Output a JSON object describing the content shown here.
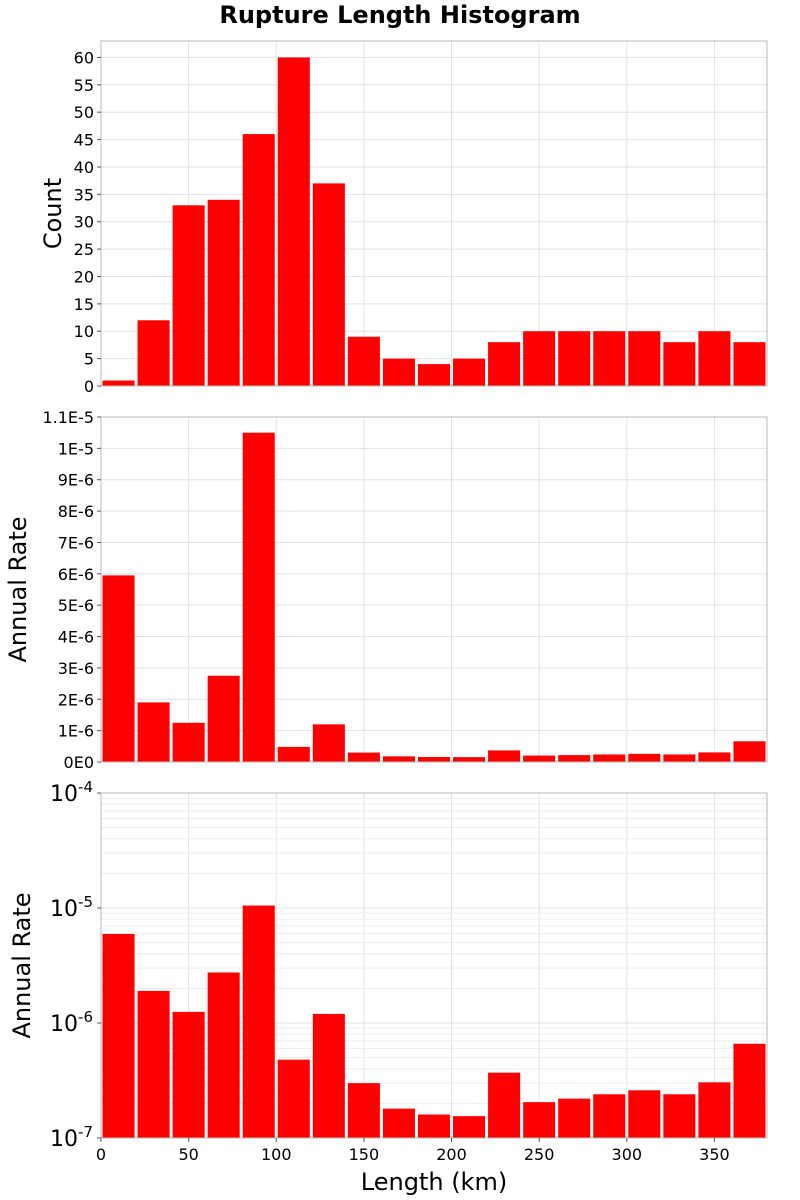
{
  "title": "Rupture Length Histogram",
  "chart_data": {
    "type": "bar",
    "title": "Rupture Length Histogram",
    "xlabel": "Length (km)",
    "xlim": [
      0,
      380
    ],
    "x_ticks": [
      "0",
      "50",
      "100",
      "150",
      "200",
      "250",
      "300",
      "350"
    ],
    "bin_width": 20,
    "bin_centers": [
      10,
      30,
      50,
      70,
      90,
      110,
      130,
      150,
      170,
      190,
      210,
      230,
      250,
      270,
      290,
      310,
      330,
      350,
      370
    ],
    "panels": [
      {
        "ylabel": "Count",
        "scale": "linear",
        "ylim": [
          0,
          63
        ],
        "y_ticks": [
          "0",
          "5",
          "10",
          "15",
          "20",
          "25",
          "30",
          "35",
          "40",
          "45",
          "50",
          "55",
          "60"
        ],
        "values": [
          1,
          12,
          33,
          34,
          46,
          60,
          37,
          9,
          5,
          4,
          5,
          8,
          10,
          10,
          10,
          10,
          8,
          10,
          8
        ]
      },
      {
        "ylabel": "Annual Rate",
        "scale": "linear",
        "ylim": [
          0,
          1.1e-05
        ],
        "y_ticks": [
          "0E0",
          "1E-6",
          "2E-6",
          "3E-6",
          "4E-6",
          "5E-6",
          "6E-6",
          "7E-6",
          "8E-6",
          "9E-6",
          "1E-5",
          "1.1E-5"
        ],
        "values": [
          5.95e-06,
          1.9e-06,
          1.25e-06,
          2.75e-06,
          1.05e-05,
          4.8e-07,
          1.2e-06,
          3e-07,
          1.8e-07,
          1.6e-07,
          1.55e-07,
          3.7e-07,
          2.05e-07,
          2.2e-07,
          2.4e-07,
          2.6e-07,
          2.4e-07,
          3.05e-07,
          6.6e-07
        ]
      },
      {
        "ylabel": "Annual Rate",
        "scale": "log",
        "ylim": [
          1e-07,
          0.0001
        ],
        "y_ticks": [
          {
            "base": "10",
            "exp": "-4"
          },
          {
            "base": "10",
            "exp": "-5"
          },
          {
            "base": "10",
            "exp": "-6"
          },
          {
            "base": "10",
            "exp": "-7"
          }
        ],
        "values": [
          5.95e-06,
          1.9e-06,
          1.25e-06,
          2.75e-06,
          1.05e-05,
          4.8e-07,
          1.2e-06,
          3e-07,
          1.8e-07,
          1.6e-07,
          1.55e-07,
          3.7e-07,
          2.05e-07,
          2.2e-07,
          2.4e-07,
          2.6e-07,
          2.4e-07,
          3.05e-07,
          6.6e-07
        ]
      }
    ],
    "bar_color": "#ff0000",
    "grid": true
  }
}
